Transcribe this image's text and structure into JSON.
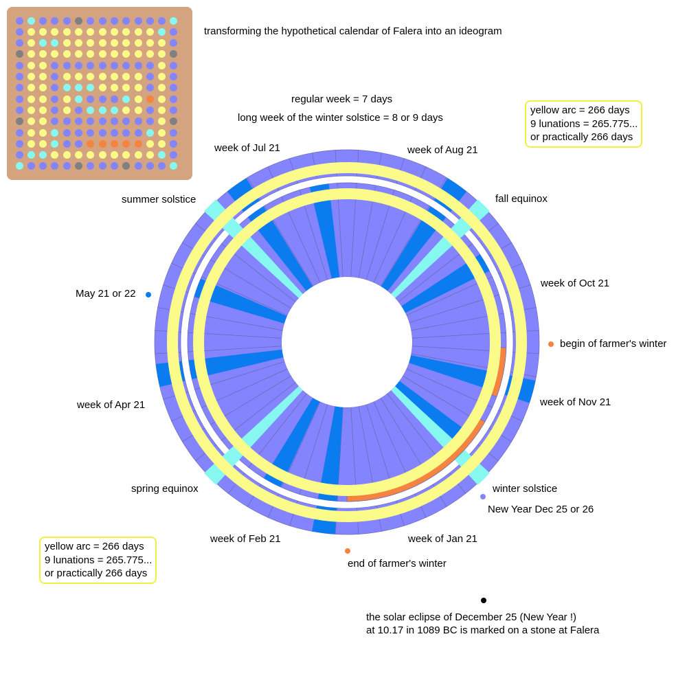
{
  "title": "transforming the hypothetical calendar of Falera into an ideogram",
  "header": {
    "regular_week": "regular week = 7 days",
    "long_week": "long week of the winter solstice = 8 or 9 days"
  },
  "info_box": {
    "line1": "yellow arc = 266 days",
    "line2": "9 lunations = 265.775...",
    "line3": "or practically 266 days"
  },
  "labels": {
    "week_jul": "week of Jul 21",
    "week_aug": "week of Aug 21",
    "summer_solstice": "summer solstice",
    "fall_equinox": "fall equinox",
    "may": "May 21 or 22",
    "week_oct": "week of  Oct 21",
    "begin_farmers_winter": "begin of farmer's winter",
    "week_apr": "week of Apr 21",
    "week_nov": "week of Nov 21",
    "spring_equinox": "spring equinox",
    "winter_solstice": "winter solstice",
    "new_year": "New Year  Dec 25 or 26",
    "week_feb": "week of Feb 21",
    "week_jan": "week of Jan 21",
    "end_farmers_winter": "end of farmer's winter",
    "eclipse_line1": "the solar eclipse of December 25 (New Year !)",
    "eclipse_line2": "at 10.17 in 1089 BC is marked on a stone at Falera"
  },
  "colors": {
    "periwinkle": "#8484ff",
    "blue": "#0a7cf0",
    "cyan": "#86f8f0",
    "yellow": "#fbfb8a",
    "orange": "#f58440",
    "gray": "#808080",
    "tan": "#d4a37f",
    "box_border": "#f0f040"
  },
  "ideogram": {
    "legend": "n = periwinkle, y = yellow, c = cyan, g = gray, o = orange",
    "rows": [
      "ncnnngnnnnnnnc",
      "nyyyyyyyyyyycn",
      "nyccyyyyyyyyyn",
      "gyyyyyyyyyyyyg",
      "nyynnnnnnnnnyn",
      "nyynyyyyyyynyn",
      "nyyncccyyyynyn",
      "nyynycnnncyoyn",
      "nyynyncccyynyn",
      "gyynnnnnnnnnyg",
      "nyycnnnnnnncyn",
      "nyycnnoooooyyn",
      "nccyyyyyyyyycn",
      "cnnnngnnngnnnc"
    ]
  }
}
